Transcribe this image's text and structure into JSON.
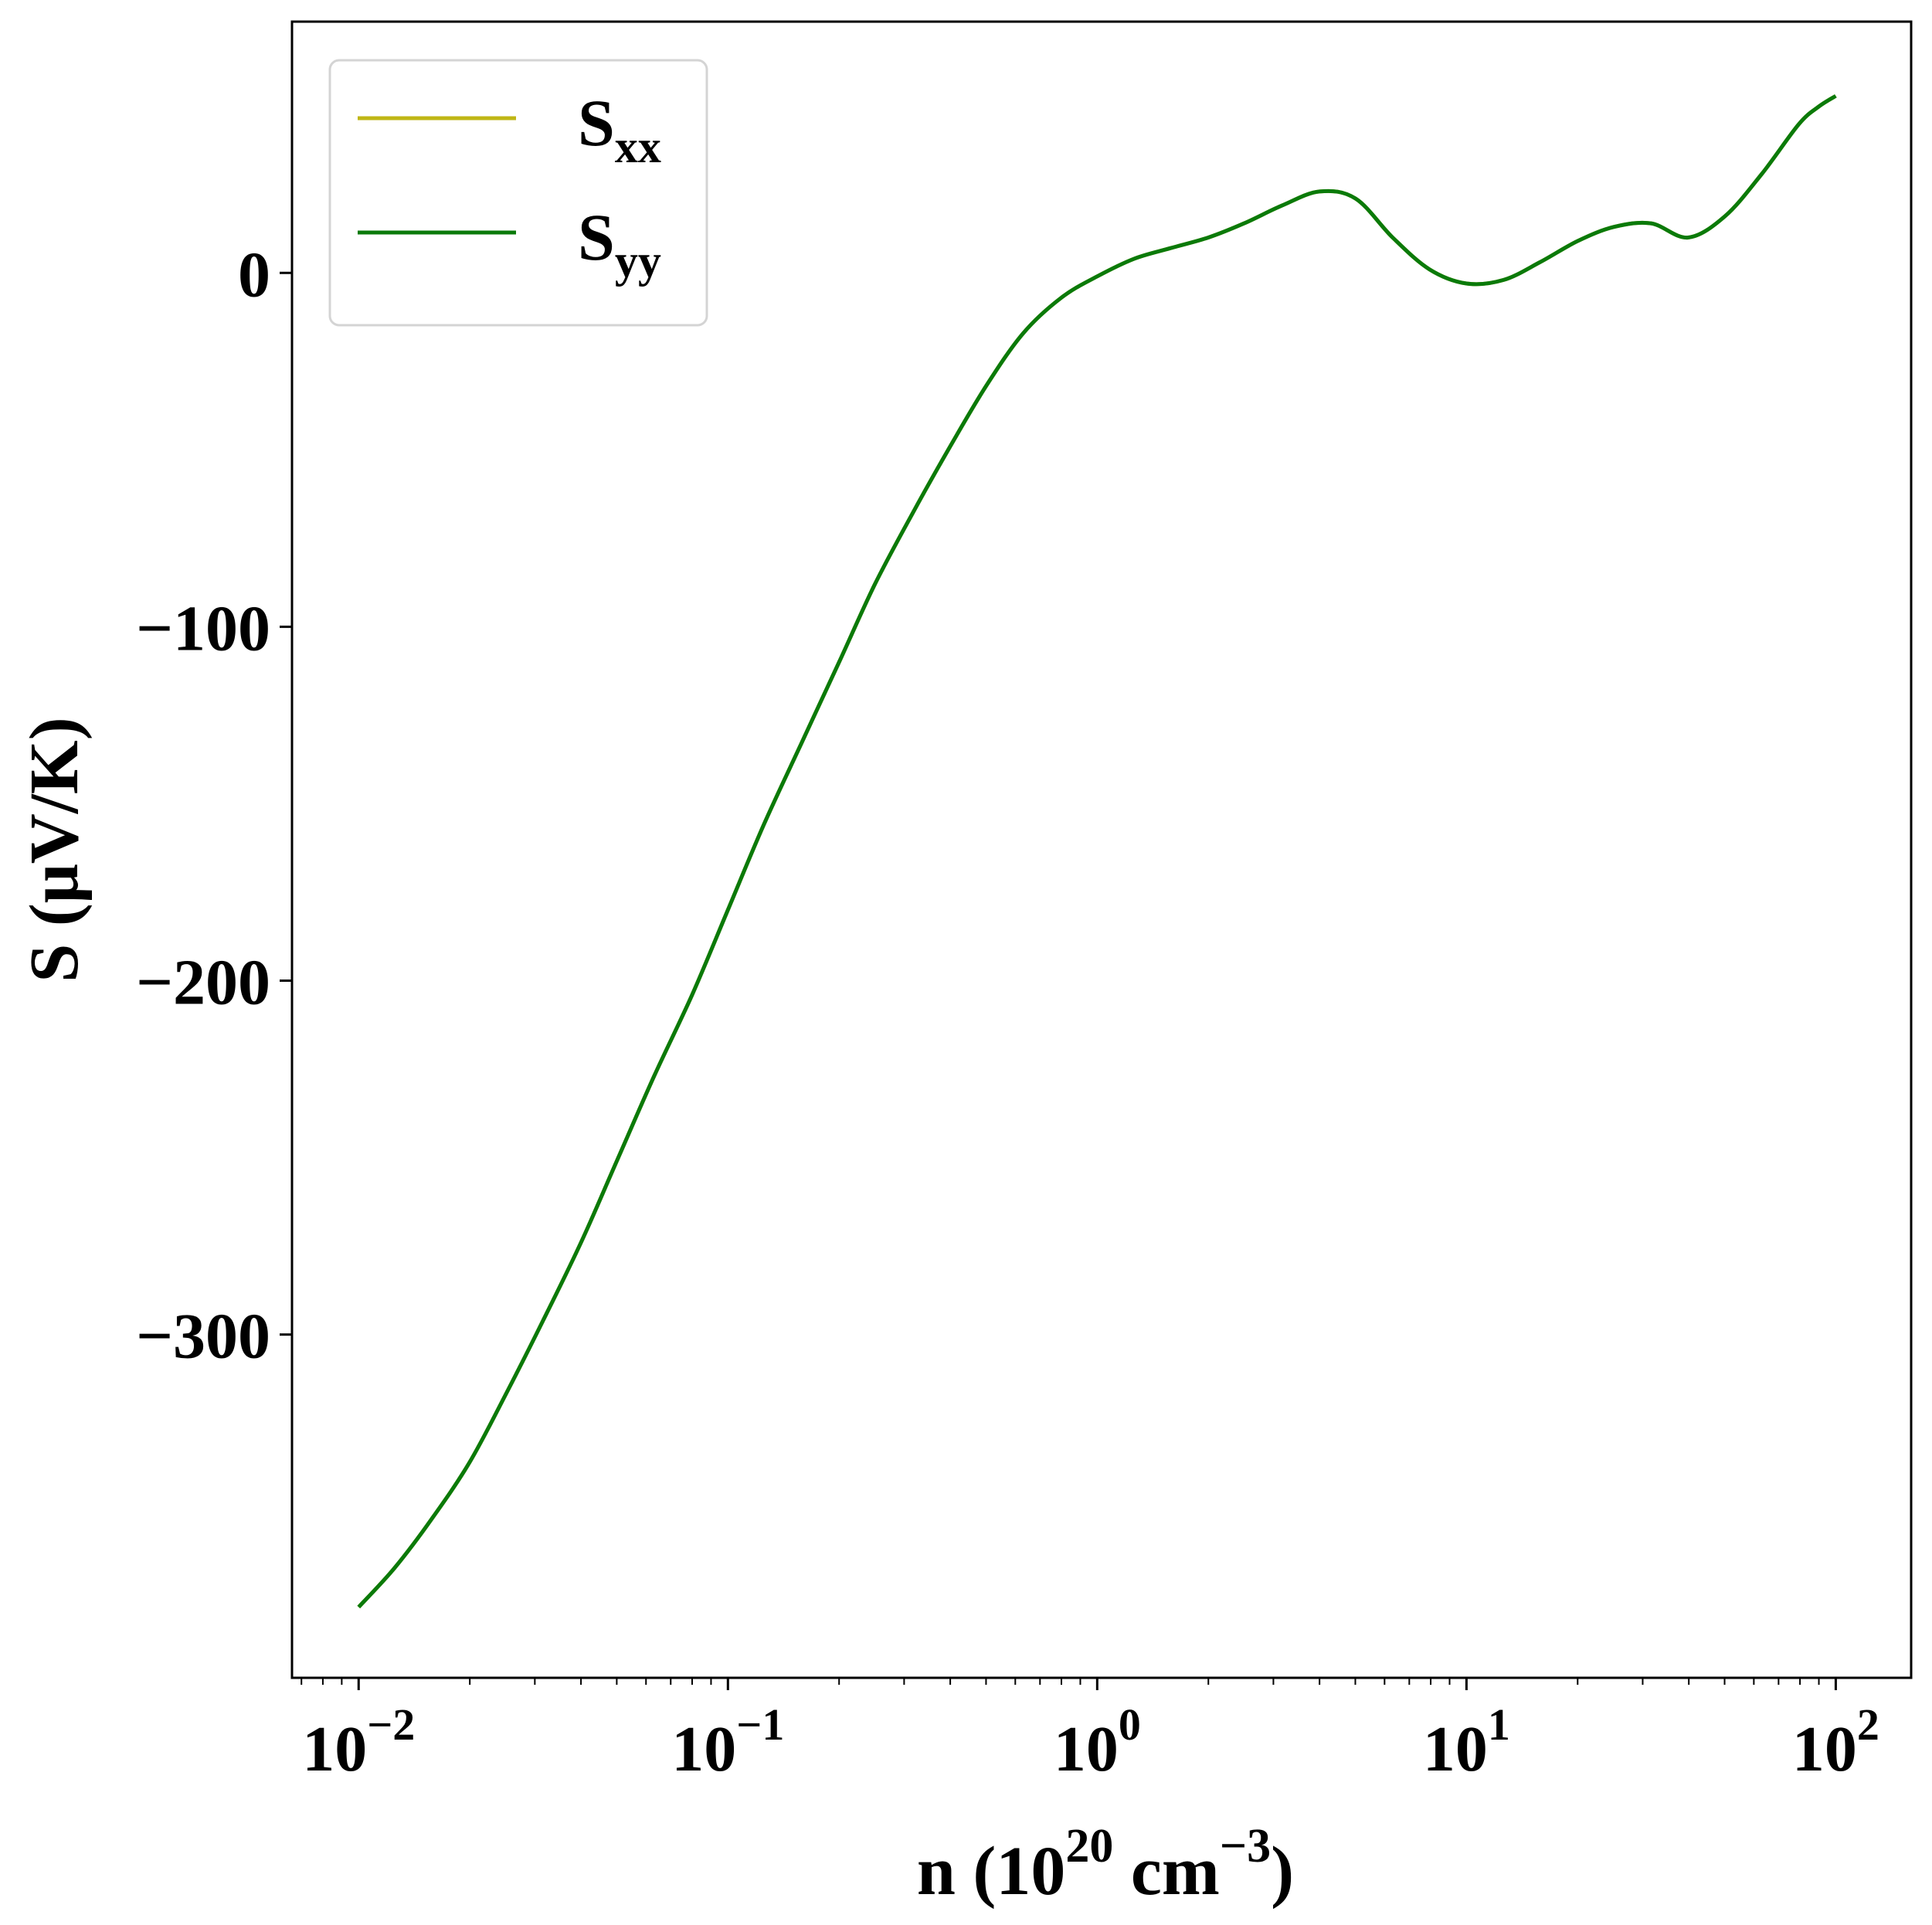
{
  "colors": {
    "series_xx": "#bfb615",
    "series_yy": "#0a7a0a",
    "axes": "#000000",
    "background": "#ffffff",
    "legend_border": "#d4d4d4"
  },
  "chart_data": {
    "type": "line",
    "xlabel": {
      "base": "n (10",
      "exp1": "20",
      "mid": " cm",
      "exp2": "−3",
      "end": ")"
    },
    "ylabel": "S (μV/K)",
    "xscale": "log",
    "xlim": [
      0.0066,
      160
    ],
    "ylim": [
      -397,
      71
    ],
    "grid": false,
    "legend_position": "top-left",
    "x_ticks": [
      {
        "value": 0.01,
        "base": "10",
        "exp": "−2"
      },
      {
        "value": 0.1,
        "base": "10",
        "exp": "−1"
      },
      {
        "value": 1,
        "base": "10",
        "exp": "0"
      },
      {
        "value": 10,
        "base": "10",
        "exp": "1"
      },
      {
        "value": 100,
        "base": "10",
        "exp": "2"
      }
    ],
    "y_ticks": [
      {
        "value": 0,
        "label": "0"
      },
      {
        "value": -100,
        "label": "−100"
      },
      {
        "value": -200,
        "label": "−200"
      },
      {
        "value": -300,
        "label": "−300"
      }
    ],
    "x": [
      0.01,
      0.0125,
      0.0158,
      0.02,
      0.025,
      0.0316,
      0.04,
      0.05,
      0.0631,
      0.08,
      0.1,
      0.125,
      0.158,
      0.2,
      0.25,
      0.316,
      0.4,
      0.5,
      0.631,
      0.8,
      1.0,
      1.26,
      1.58,
      2.0,
      2.5,
      3.16,
      4.0,
      5.01,
      6.31,
      7.94,
      10.0,
      12.6,
      15.8,
      20.0,
      25.1,
      31.6,
      39.8,
      50.1,
      63.1,
      79.4,
      90.0,
      100.0
    ],
    "series": [
      {
        "name": "S_xx",
        "label_main": "S",
        "label_sub": "xx",
        "y": [
          -377,
          -366,
          -352,
          -336,
          -317,
          -296,
          -274,
          -251,
          -227,
          -204,
          -180,
          -156,
          -133,
          -110,
          -88,
          -68,
          -49,
          -32,
          -17,
          -7,
          -1,
          4,
          7,
          10,
          14,
          19,
          23,
          21,
          10,
          1,
          -3,
          -2,
          3,
          9,
          13,
          14,
          10,
          16,
          28,
          42,
          47,
          50
        ]
      },
      {
        "name": "S_yy",
        "label_main": "S",
        "label_sub": "yy",
        "y": [
          -377,
          -366,
          -352,
          -336,
          -317,
          -296,
          -274,
          -251,
          -227,
          -204,
          -180,
          -156,
          -133,
          -110,
          -88,
          -68,
          -49,
          -32,
          -17,
          -7,
          -1,
          4,
          7,
          10,
          14,
          19,
          23,
          21,
          10,
          1,
          -3,
          -2,
          3,
          9,
          13,
          14,
          10,
          16,
          28,
          42,
          47,
          50
        ]
      }
    ]
  }
}
